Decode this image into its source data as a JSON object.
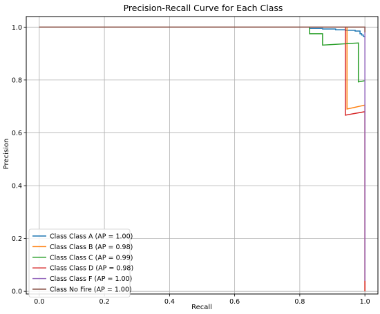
{
  "chart_data": {
    "type": "line",
    "title": "Precision-Recall Curve for Each Class",
    "xlabel": "Recall",
    "ylabel": "Precision",
    "xlim": [
      -0.04,
      1.04
    ],
    "ylim": [
      -0.01,
      1.04
    ],
    "xticks": [
      0.0,
      0.2,
      0.4,
      0.6,
      0.8,
      1.0
    ],
    "xtick_labels": [
      "0.0",
      "0.2",
      "0.4",
      "0.6",
      "0.8",
      "1.0"
    ],
    "yticks": [
      0.0,
      0.2,
      0.4,
      0.6,
      0.8,
      1.0
    ],
    "ytick_labels": [
      "0.0",
      "0.2",
      "0.4",
      "0.6",
      "0.8",
      "1.0"
    ],
    "grid": true,
    "legend_position": "lower-left",
    "series": [
      {
        "name": "Class Class A (AP = 1.00)",
        "color": "#1f77b4",
        "points": [
          [
            0.0,
            1.0
          ],
          [
            0.83,
            1.0
          ],
          [
            0.83,
            0.995
          ],
          [
            0.87,
            0.995
          ],
          [
            0.87,
            0.993
          ],
          [
            0.91,
            0.993
          ],
          [
            0.91,
            0.99
          ],
          [
            0.94,
            0.99
          ],
          [
            0.94,
            0.988
          ],
          [
            0.97,
            0.988
          ],
          [
            0.97,
            0.985
          ],
          [
            0.985,
            0.985
          ],
          [
            0.985,
            0.975
          ],
          [
            0.99,
            0.975
          ],
          [
            0.99,
            0.97
          ],
          [
            0.995,
            0.97
          ],
          [
            0.995,
            0.965
          ],
          [
            1.0,
            0.965
          ],
          [
            1.0,
            0.962
          ]
        ]
      },
      {
        "name": "Class Class B (AP = 0.98)",
        "color": "#ff7f0e",
        "points": [
          [
            0.0,
            1.0
          ],
          [
            0.945,
            1.0
          ],
          [
            0.945,
            0.69
          ],
          [
            1.0,
            0.705
          ],
          [
            1.0,
            0.0
          ]
        ]
      },
      {
        "name": "Class Class C (AP = 0.99)",
        "color": "#2ca02c",
        "points": [
          [
            0.0,
            1.0
          ],
          [
            0.83,
            1.0
          ],
          [
            0.83,
            0.975
          ],
          [
            0.87,
            0.975
          ],
          [
            0.87,
            0.932
          ],
          [
            0.98,
            0.94
          ],
          [
            0.98,
            0.793
          ],
          [
            1.0,
            0.797
          ]
        ]
      },
      {
        "name": "Class Class D (AP = 0.98)",
        "color": "#d62728",
        "points": [
          [
            0.0,
            1.0
          ],
          [
            0.94,
            1.0
          ],
          [
            0.94,
            0.667
          ],
          [
            1.0,
            0.68
          ],
          [
            1.0,
            0.0
          ]
        ]
      },
      {
        "name": "Class Class F (AP = 1.00)",
        "color": "#9467bd",
        "points": [
          [
            0.0,
            1.0
          ],
          [
            1.0,
            1.0
          ],
          [
            1.0,
            0.04
          ]
        ]
      },
      {
        "name": "Class No Fire (AP = 1.00)",
        "color": "#8c564b",
        "points": [
          [
            0.0,
            1.0
          ],
          [
            1.0,
            1.0
          ],
          [
            1.0,
            0.98
          ]
        ]
      }
    ]
  }
}
